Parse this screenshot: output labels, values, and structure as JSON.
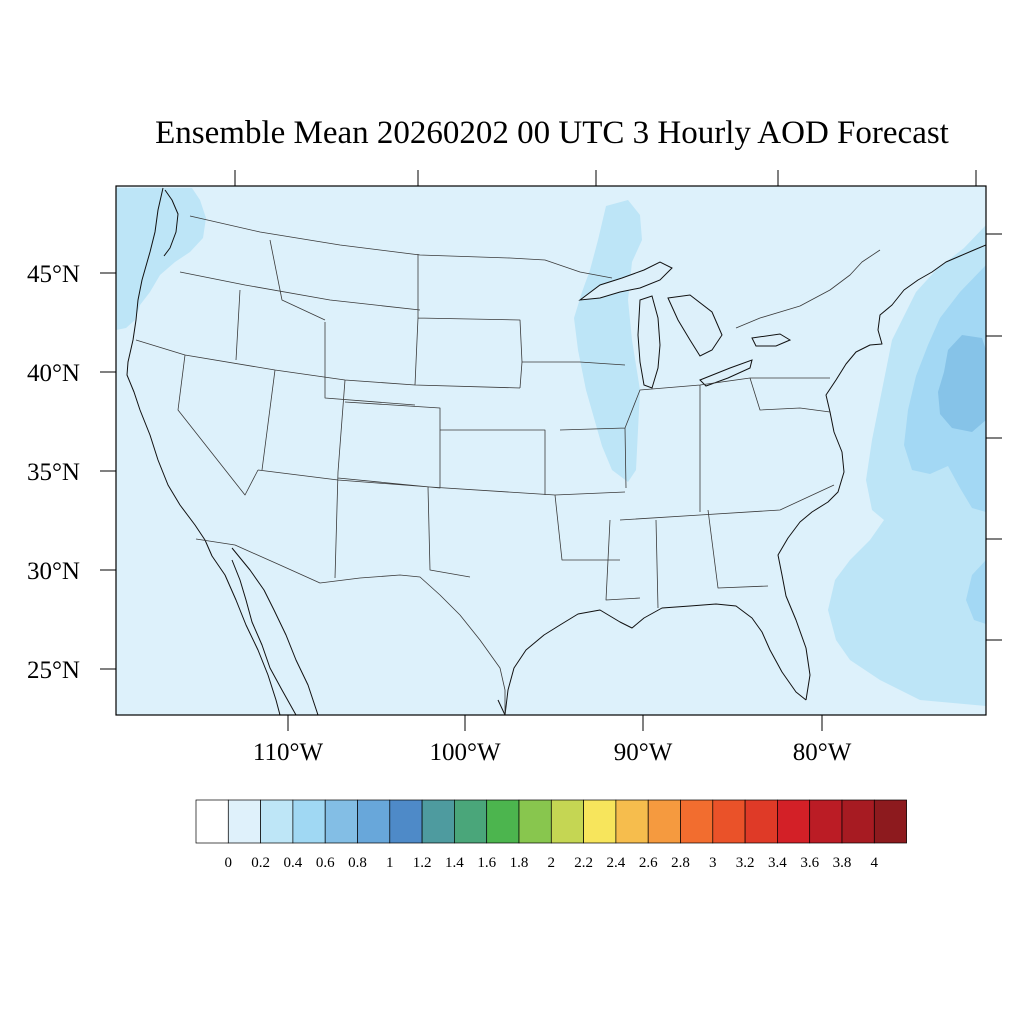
{
  "title": "Ensemble Mean 20260202 00 UTC 3 Hourly AOD Forecast",
  "map": {
    "background_color": "#ddf1fb",
    "lat_labels": [
      "45°N",
      "40°N",
      "35°N",
      "30°N",
      "25°N"
    ],
    "lon_labels": [
      "110°W",
      "100°W",
      "90°W",
      "80°W"
    ],
    "aod_regions": [
      {
        "region": "Pacific Northwest coast",
        "level": "0.2–0.4",
        "color": "#bde5f7"
      },
      {
        "region": "Western Lake Michigan / Illinois corridor",
        "level": "0.2–0.4",
        "color": "#bde5f7"
      },
      {
        "region": "Atlantic offshore (Gulf Stream)",
        "level": "0.2–0.4",
        "color": "#bde5f7"
      },
      {
        "region": "Atlantic offshore core",
        "level": "0.4–0.6",
        "color": "#a3d8f4"
      },
      {
        "region": "Atlantic offshore maximum",
        "level": "0.6–0.8",
        "color": "#84bfe6"
      }
    ]
  },
  "colorbar": {
    "colors": [
      "#ffffff",
      "#dff1fb",
      "#bee6f7",
      "#a0d8f3",
      "#83bee5",
      "#68a7da",
      "#4e8ac8",
      "#4e9b9f",
      "#4aa67a",
      "#4cb54e",
      "#88c64e",
      "#c5d653",
      "#f7e55c",
      "#f6bd4d",
      "#f59a3f",
      "#f26d2f",
      "#ea5229",
      "#df3a27",
      "#d32027",
      "#bb1c25",
      "#a71b22",
      "#8d1a1e"
    ],
    "labels": [
      "0",
      "0.2",
      "0.4",
      "0.6",
      "0.8",
      "1",
      "1.2",
      "1.4",
      "1.6",
      "1.8",
      "2",
      "2.2",
      "2.4",
      "2.6",
      "2.8",
      "3",
      "3.2",
      "3.4",
      "3.6",
      "3.8",
      "4"
    ]
  }
}
